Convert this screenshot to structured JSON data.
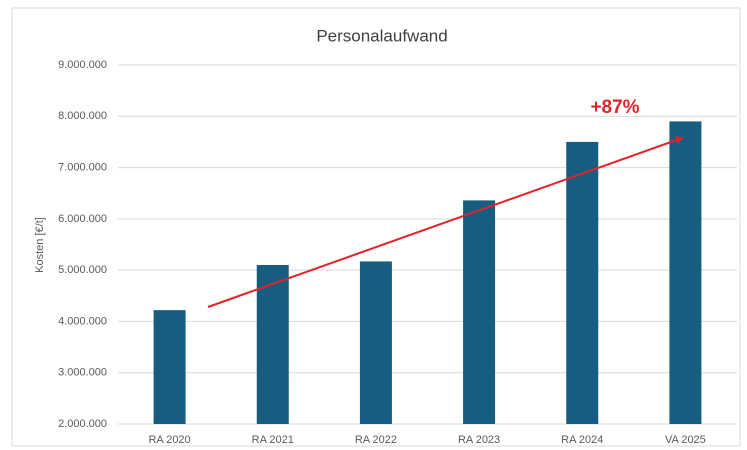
{
  "chart_data": {
    "type": "bar",
    "title": "Personalaufwand",
    "y_label": "Kosten [€/t]",
    "categories": [
      "RA 2020",
      "RA 2021",
      "RA 2022",
      "RA 2023",
      "RA 2024",
      "VA 2025"
    ],
    "values": [
      4220000,
      5100000,
      5170000,
      6360000,
      7500000,
      7900000
    ],
    "color": "#175d7f",
    "ylim": [
      2000000,
      9000000
    ],
    "yticks": [
      {
        "value": 2000000,
        "label": "2.000.000"
      },
      {
        "value": 3000000,
        "label": "3.000.000"
      },
      {
        "value": 4000000,
        "label": "4.000.000"
      },
      {
        "value": 5000000,
        "label": "5.000.000"
      },
      {
        "value": 6000000,
        "label": "6.000.000"
      },
      {
        "value": 7000000,
        "label": "7.000.000"
      },
      {
        "value": 8000000,
        "label": "8.000.000"
      },
      {
        "value": 9000000,
        "label": "9.000.000"
      }
    ],
    "grid": true,
    "annotation": "+87%"
  }
}
